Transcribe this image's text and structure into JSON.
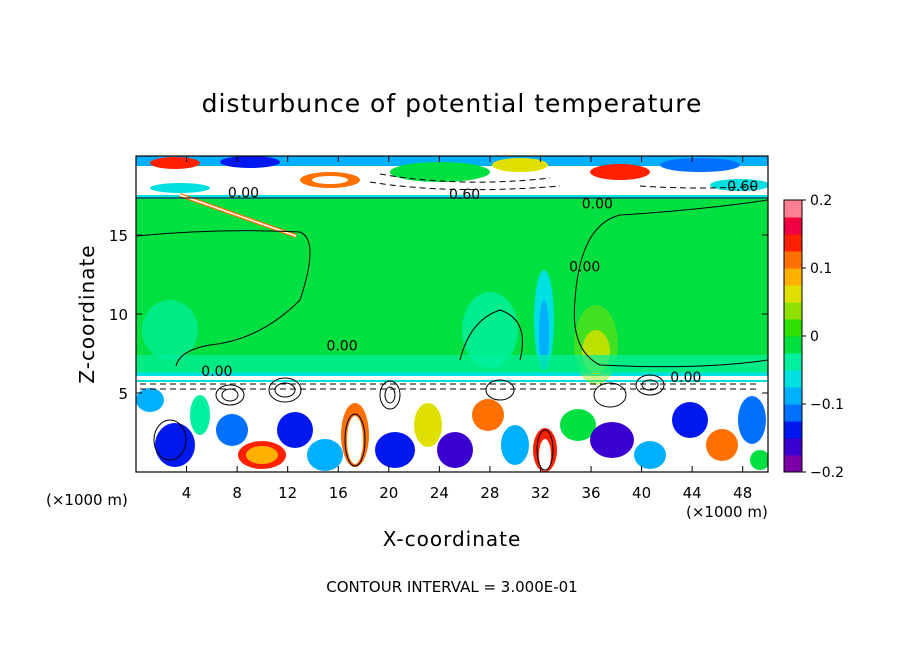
{
  "chart_data": {
    "type": "heatmap",
    "title": "disturbunce of potential temperature",
    "xlabel": "X-coordinate",
    "ylabel": "Z-coordinate",
    "x_unit_label_left": "(×1000 m)",
    "x_unit_label_right": "(×1000 m)",
    "xlim": [
      0,
      50
    ],
    "ylim": [
      0,
      20
    ],
    "x_ticks": [
      4,
      8,
      12,
      16,
      20,
      24,
      28,
      32,
      36,
      40,
      44,
      48
    ],
    "y_ticks": [
      5,
      10,
      15
    ],
    "colorbar": {
      "range": [
        -0.2,
        0.2
      ],
      "ticks": [
        "0.2",
        "0.1",
        "0",
        "−0.1",
        "−0.2"
      ],
      "tick_values": [
        0.2,
        0.1,
        0,
        -0.1,
        -0.2
      ],
      "colors": [
        "#7b00a8",
        "#3b00d0",
        "#0018f0",
        "#0070ff",
        "#00b0ff",
        "#00e0e0",
        "#00f0a0",
        "#00e040",
        "#30e000",
        "#90e000",
        "#e0e000",
        "#ffb000",
        "#ff7000",
        "#ff2000",
        "#f00040",
        "#ff8090"
      ]
    },
    "contour_labels": [
      {
        "text": "0.00",
        "x": 8.5,
        "z": 17.7
      },
      {
        "text": "0.60",
        "x": 26.0,
        "z": 17.6
      },
      {
        "text": "0.00",
        "x": 36.5,
        "z": 17.0
      },
      {
        "text": "0.60",
        "x": 48.0,
        "z": 18.1
      },
      {
        "text": "0.00",
        "x": 35.5,
        "z": 13.0
      },
      {
        "text": "0.00",
        "x": 16.3,
        "z": 8.0
      },
      {
        "text": "0.00",
        "x": 6.4,
        "z": 6.4
      },
      {
        "text": "0.00",
        "x": 43.5,
        "z": 6.0
      }
    ],
    "contour_interval": 0.3,
    "footnote": "CONTOUR INTERVAL = 3.000E-01"
  }
}
